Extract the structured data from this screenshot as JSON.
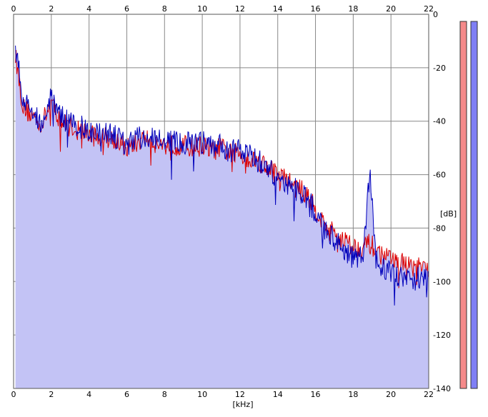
{
  "chart_data": {
    "type": "line",
    "title": "",
    "xlabel": "[kHz]",
    "ylabel": "[dB]",
    "xlim": [
      0,
      22
    ],
    "ylim": [
      -140,
      0
    ],
    "grid": true,
    "x_ticks": [
      "0",
      "2",
      "4",
      "6",
      "8",
      "10",
      "12",
      "14",
      "16",
      "18",
      "20",
      "22"
    ],
    "y_ticks": [
      "0",
      "-20",
      "-40",
      "-60",
      "-80",
      "-100",
      "-120",
      "-140"
    ],
    "x_tick_values": [
      0,
      2,
      4,
      6,
      8,
      10,
      12,
      14,
      16,
      18,
      20,
      22
    ],
    "y_tick_values": [
      0,
      -20,
      -40,
      -60,
      -80,
      -100,
      -120,
      -140
    ],
    "x": [
      0.1,
      0.5,
      1,
      1.5,
      2,
      2.5,
      3,
      3.5,
      4,
      4.5,
      5,
      5.5,
      6,
      6.5,
      7,
      7.5,
      8,
      8.5,
      9,
      9.5,
      10,
      10.5,
      11,
      11.5,
      12,
      12.5,
      13,
      13.5,
      14,
      14.5,
      15,
      15.5,
      16,
      16.5,
      17,
      17.5,
      18,
      18.5,
      18.9,
      19.2,
      19.5,
      20,
      20.5,
      21,
      21.5,
      22
    ],
    "series": [
      {
        "color": "#dd0000",
        "fill": "#c3c3f5",
        "values": [
          -15,
          -35,
          -38,
          -41,
          -33,
          -40,
          -42,
          -43,
          -45,
          -46,
          -46,
          -47,
          -50,
          -48,
          -46,
          -48,
          -49,
          -49,
          -49,
          -50,
          -49,
          -51,
          -50,
          -52,
          -52,
          -54,
          -55,
          -57,
          -60,
          -62,
          -65,
          -67,
          -73,
          -79,
          -82,
          -84,
          -87,
          -87,
          -86,
          -88,
          -90,
          -92,
          -93,
          -94,
          -95,
          -96
        ]
      },
      {
        "color": "#0000bb",
        "values": [
          -12,
          -32,
          -37,
          -40,
          -31,
          -38,
          -41,
          -42,
          -44,
          -45,
          -45,
          -46,
          -49,
          -47,
          -45,
          -47,
          -48,
          -48,
          -48,
          -49,
          -48,
          -50,
          -49,
          -51,
          -51,
          -53,
          -55,
          -58,
          -61,
          -63,
          -66,
          -68,
          -74,
          -80,
          -84,
          -88,
          -91,
          -91,
          -58,
          -92,
          -95,
          -97,
          -98,
          -99,
          -99,
          -100
        ]
      }
    ]
  },
  "level_meters": [
    {
      "color": "#f58a8a",
      "level": 1.0
    },
    {
      "color": "#7f7ff5",
      "level": 1.0
    }
  ]
}
